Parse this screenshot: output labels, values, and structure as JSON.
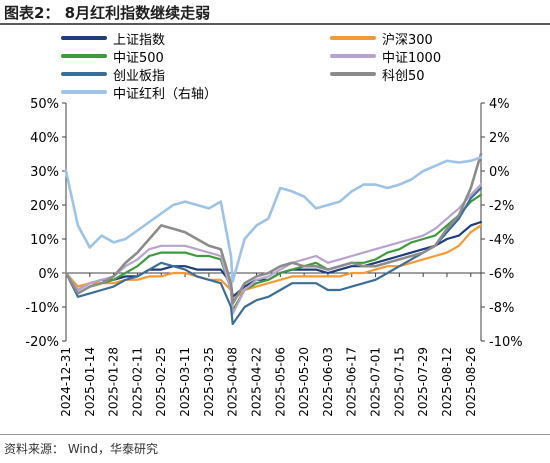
{
  "title": "图表2：  8月红利指数继续走弱",
  "source": "资料来源：  Wind，华泰研究",
  "chart_data": {
    "type": "line",
    "title": "8月红利指数继续走弱",
    "xlabel": "",
    "ylabel": "",
    "y2label": "",
    "grid": false,
    "legend_position": "top",
    "ylim": [
      -20,
      50
    ],
    "y_ticks": [
      -20,
      -10,
      0,
      10,
      20,
      30,
      40,
      50
    ],
    "y_tick_labels": [
      "-20%",
      "-10%",
      "0%",
      "10%",
      "20%",
      "30%",
      "40%",
      "50%"
    ],
    "y2lim": [
      -10,
      4
    ],
    "y2_ticks": [
      -10,
      -8,
      -6,
      -4,
      -2,
      0,
      2,
      4
    ],
    "y2_tick_labels": [
      "-10%",
      "-8%",
      "-6%",
      "-4%",
      "-2%",
      "0%",
      "2%",
      "4%"
    ],
    "x_tick_labels": [
      "2024-12-31",
      "2025-01-14",
      "2025-01-28",
      "2025-02-11",
      "2025-02-25",
      "2025-03-11",
      "2025-03-25",
      "2025-04-08",
      "2025-04-22",
      "2025-05-06",
      "2025-05-20",
      "2025-06-03",
      "2025-06-17",
      "2025-07-01",
      "2025-07-15",
      "2025-07-29",
      "2025-08-12",
      "2025-08-26"
    ],
    "dates": [
      "2024-12-31",
      "2025-01-07",
      "2025-01-14",
      "2025-01-21",
      "2025-01-28",
      "2025-02-04",
      "2025-02-11",
      "2025-02-18",
      "2025-02-25",
      "2025-03-04",
      "2025-03-11",
      "2025-03-18",
      "2025-03-25",
      "2025-04-01",
      "2025-04-07",
      "2025-04-08",
      "2025-04-15",
      "2025-04-22",
      "2025-04-29",
      "2025-05-06",
      "2025-05-13",
      "2025-05-20",
      "2025-05-27",
      "2025-06-03",
      "2025-06-10",
      "2025-06-17",
      "2025-06-24",
      "2025-07-01",
      "2025-07-08",
      "2025-07-15",
      "2025-07-22",
      "2025-07-29",
      "2025-08-05",
      "2025-08-12",
      "2025-08-19",
      "2025-08-26",
      "2025-09-01"
    ],
    "series": [
      {
        "name": "上证指数",
        "axis": "left",
        "color": "#1f3d7a",
        "width": 2.2,
        "values": [
          0,
          -5,
          -3,
          -2,
          -2,
          -1,
          -1,
          1,
          1,
          2,
          2,
          1,
          1,
          1,
          -3,
          -7,
          -4,
          -2,
          -2,
          0,
          1,
          1,
          1,
          0,
          1,
          2,
          2,
          3,
          4,
          5,
          6,
          7,
          8,
          10,
          11,
          14,
          15
        ]
      },
      {
        "name": "沪深300",
        "axis": "left",
        "color": "#f59a33",
        "width": 2.2,
        "values": [
          0,
          -4,
          -3,
          -3,
          -3,
          -2,
          -2,
          -1,
          -1,
          0,
          0,
          -1,
          -2,
          -2,
          -5,
          -8,
          -5,
          -4,
          -3,
          -2,
          -1,
          -1,
          -1,
          -1,
          -1,
          0,
          0,
          1,
          2,
          2,
          3,
          4,
          5,
          6,
          8,
          12,
          14
        ]
      },
      {
        "name": "中证500",
        "axis": "left",
        "color": "#3e9a3c",
        "width": 2.2,
        "values": [
          0,
          -6,
          -4,
          -3,
          -2,
          0,
          2,
          5,
          6,
          6,
          6,
          5,
          5,
          4,
          -5,
          -11,
          -5,
          -3,
          -2,
          0,
          1,
          2,
          3,
          1,
          2,
          3,
          3,
          4,
          6,
          7,
          9,
          10,
          11,
          14,
          17,
          21,
          23
        ]
      },
      {
        "name": "中证1000",
        "axis": "left",
        "color": "#b7a3cd",
        "width": 2.2,
        "values": [
          0,
          -5,
          -3,
          -2,
          -1,
          2,
          4,
          7,
          8,
          8,
          8,
          7,
          6,
          5,
          -5,
          -12,
          -5,
          -2,
          -1,
          1,
          3,
          4,
          5,
          3,
          4,
          5,
          6,
          7,
          8,
          9,
          10,
          11,
          13,
          16,
          19,
          23,
          26
        ]
      },
      {
        "name": "创业板指",
        "axis": "left",
        "color": "#3c6e95",
        "width": 2.2,
        "values": [
          0,
          -7,
          -6,
          -5,
          -4,
          -2,
          -1,
          1,
          3,
          2,
          1,
          -1,
          -2,
          -3,
          -10,
          -15,
          -10,
          -8,
          -7,
          -5,
          -3,
          -3,
          -3,
          -5,
          -5,
          -4,
          -3,
          -2,
          0,
          2,
          4,
          6,
          8,
          12,
          16,
          22,
          25
        ]
      },
      {
        "name": "科创50",
        "axis": "left",
        "color": "#8c8c8c",
        "width": 2.6,
        "values": [
          0,
          -6,
          -4,
          -3,
          -1,
          3,
          6,
          10,
          14,
          13,
          12,
          10,
          8,
          7,
          -3,
          -9,
          -3,
          -1,
          0,
          2,
          3,
          2,
          2,
          1,
          2,
          3,
          2,
          2,
          3,
          4,
          5,
          6,
          8,
          13,
          17,
          25,
          35
        ]
      },
      {
        "name": "中证红利（右轴）",
        "axis": "right",
        "color": "#9dc3e6",
        "width": 2.6,
        "values": [
          0,
          -3.2,
          -4.5,
          -3.8,
          -4.2,
          -4.0,
          -3.5,
          -3.0,
          -2.5,
          -2.0,
          -1.8,
          -2.0,
          -2.2,
          -1.8,
          -5.0,
          -6.5,
          -4.0,
          -3.2,
          -2.8,
          -1.0,
          -1.2,
          -1.5,
          -2.2,
          -2.0,
          -1.8,
          -1.2,
          -0.8,
          -0.8,
          -1.0,
          -0.8,
          -0.5,
          0.0,
          0.3,
          0.6,
          0.5,
          0.6,
          0.8
        ]
      }
    ]
  },
  "colors": {
    "axis": "#404040",
    "text": "#000000"
  }
}
